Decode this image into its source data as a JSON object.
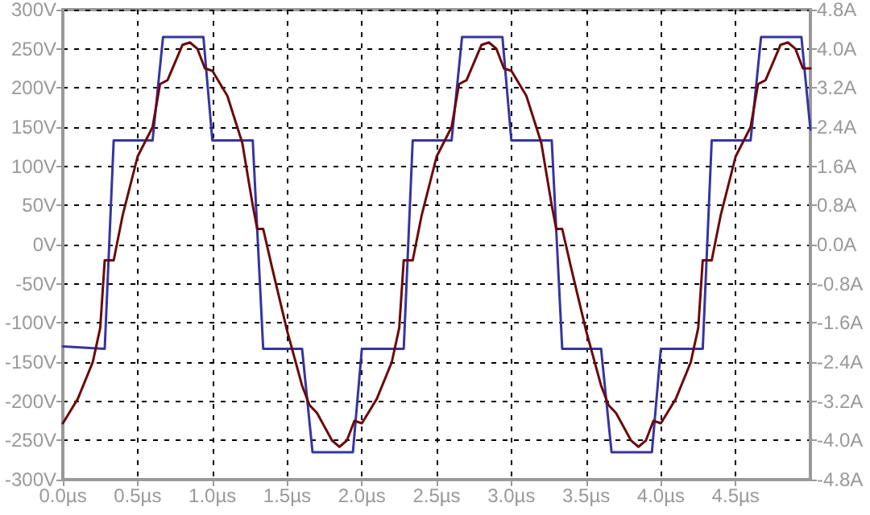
{
  "chart_data": {
    "type": "line",
    "grid": true,
    "marker": "none",
    "line_style": "solid",
    "xlim": [
      0,
      5
    ],
    "xticks": [
      {
        "value": 0,
        "label": "0.0µs"
      },
      {
        "value": 0.5,
        "label": "0.5µs"
      },
      {
        "value": 1,
        "label": "1.0µs"
      },
      {
        "value": 1.5,
        "label": "1.5µs"
      },
      {
        "value": 2,
        "label": "2.0µs"
      },
      {
        "value": 2.5,
        "label": "2.5µs"
      },
      {
        "value": 3,
        "label": "3.0µs"
      },
      {
        "value": 3.5,
        "label": "3.5µs"
      },
      {
        "value": 4,
        "label": "4.0µs"
      },
      {
        "value": 4.5,
        "label": "4.5µs"
      }
    ],
    "ylim": [
      -300,
      300
    ],
    "yticks": [
      {
        "value": -300,
        "label": "-300V"
      },
      {
        "value": -250,
        "label": "-250V"
      },
      {
        "value": -200,
        "label": "-200V"
      },
      {
        "value": -150,
        "label": "-150V"
      },
      {
        "value": -100,
        "label": "-100V"
      },
      {
        "value": -50,
        "label": "-50V"
      },
      {
        "value": 0,
        "label": "0V"
      },
      {
        "value": 50,
        "label": "50V"
      },
      {
        "value": 100,
        "label": "100V"
      },
      {
        "value": 150,
        "label": "150V"
      },
      {
        "value": 200,
        "label": "200V"
      },
      {
        "value": 250,
        "label": "250V"
      },
      {
        "value": 300,
        "label": "300V"
      }
    ],
    "y2lim": [
      -4.8,
      4.8
    ],
    "y2ticks": [
      {
        "value": -4.8,
        "label": "-4.8A"
      },
      {
        "value": -4,
        "label": "-4.0A"
      },
      {
        "value": -3.2,
        "label": "-3.2A"
      },
      {
        "value": -2.4,
        "label": "-2.4A"
      },
      {
        "value": -1.6,
        "label": "-1.6A"
      },
      {
        "value": -0.8,
        "label": "-0.8A"
      },
      {
        "value": 0,
        "label": "0.0A"
      },
      {
        "value": 0.8,
        "label": "0.8A"
      },
      {
        "value": 1.6,
        "label": "1.6A"
      },
      {
        "value": 2.4,
        "label": "2.4A"
      },
      {
        "value": 3.2,
        "label": "3.2A"
      },
      {
        "value": 4,
        "label": "4.0A"
      },
      {
        "value": 4.8,
        "label": "4.8A"
      }
    ],
    "series": [
      {
        "color": "#3535a0",
        "x": [
          0,
          0.28,
          0.34,
          0.6,
          0.67,
          0.94,
          1.0,
          1.27,
          1.34,
          1.6,
          1.67,
          1.94,
          2.0,
          2.28,
          2.34,
          2.6,
          2.67,
          2.94,
          3.0,
          3.27,
          3.34,
          3.6,
          3.67,
          3.94,
          4.0,
          4.28,
          4.34,
          4.6,
          4.67,
          4.94,
          5.0
        ],
        "values": [
          -130,
          -133,
          133,
          133,
          265,
          265,
          133,
          133,
          -133,
          -133,
          -265,
          -265,
          -133,
          -133,
          133,
          133,
          265,
          265,
          133,
          133,
          -133,
          -133,
          -265,
          -265,
          -133,
          -133,
          133,
          133,
          265,
          265,
          147
        ]
      },
      {
        "color": "#6b0a0a",
        "axis": "y2",
        "x": [
          0,
          0.1,
          0.2,
          0.25,
          0.28,
          0.34,
          0.4,
          0.5,
          0.6,
          0.65,
          0.7,
          0.8,
          0.85,
          0.9,
          0.95,
          1.0,
          1.1,
          1.2,
          1.27,
          1.3,
          1.34,
          1.4,
          1.5,
          1.6,
          1.65,
          1.7,
          1.8,
          1.85,
          1.9,
          1.95,
          2.0,
          2.1,
          2.2,
          2.25,
          2.28,
          2.34,
          2.4,
          2.5,
          2.6,
          2.65,
          2.7,
          2.8,
          2.85,
          2.9,
          2.95,
          3.0,
          3.1,
          3.2,
          3.27,
          3.3,
          3.34,
          3.4,
          3.5,
          3.6,
          3.65,
          3.7,
          3.8,
          3.85,
          3.9,
          3.95,
          4.0,
          4.1,
          4.2,
          4.25,
          4.28,
          4.34,
          4.4,
          4.5,
          4.6,
          4.65,
          4.7,
          4.8,
          4.85,
          4.9,
          4.95,
          5.0
        ],
        "values": [
          -3.65,
          -3.15,
          -2.4,
          -1.7,
          -0.32,
          -0.32,
          0.6,
          1.8,
          2.4,
          3.28,
          3.36,
          4.08,
          4.13,
          4.0,
          3.6,
          3.55,
          3.04,
          2.08,
          0.8,
          0.32,
          0.32,
          -0.48,
          -1.76,
          -2.88,
          -3.28,
          -3.44,
          -4.0,
          -4.13,
          -4.0,
          -3.6,
          -3.65,
          -3.15,
          -2.4,
          -1.7,
          -0.32,
          -0.32,
          0.6,
          1.8,
          2.4,
          3.28,
          3.36,
          4.08,
          4.13,
          4.0,
          3.6,
          3.55,
          3.04,
          2.08,
          0.8,
          0.32,
          0.32,
          -0.48,
          -1.76,
          -2.88,
          -3.28,
          -3.44,
          -4.0,
          -4.13,
          -4.0,
          -3.6,
          -3.65,
          -3.15,
          -2.4,
          -1.7,
          -0.32,
          -0.32,
          0.6,
          1.8,
          2.4,
          3.28,
          3.36,
          4.08,
          4.13,
          4.0,
          3.6,
          3.6
        ]
      }
    ]
  }
}
